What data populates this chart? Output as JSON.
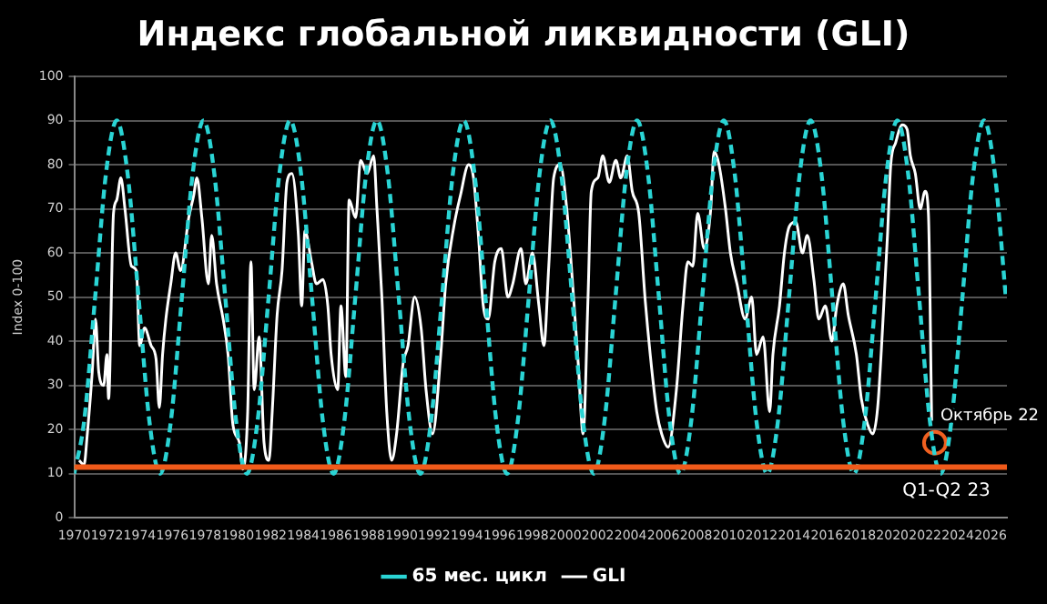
{
  "chart_data": {
    "type": "line",
    "title": "Индекс глобальной ликвидности (GLI)",
    "ylabel": "Index 0-100",
    "xlim": [
      1970,
      2027
    ],
    "xticks": [
      1970,
      1972,
      1974,
      1976,
      1978,
      1980,
      1982,
      1984,
      1986,
      1988,
      1990,
      1992,
      1994,
      1996,
      1998,
      2000,
      2002,
      2004,
      2006,
      2008,
      2010,
      2012,
      2014,
      2016,
      2018,
      2020,
      2022,
      2024,
      2026
    ],
    "ylim": [
      0,
      100
    ],
    "yticks": [
      0,
      10,
      20,
      30,
      40,
      50,
      60,
      70,
      80,
      90,
      100
    ],
    "grid": "y",
    "legend": "bottom",
    "series": [
      {
        "name": "65 мес. цикл",
        "color": "#2ad4d4",
        "line_style": "dashed",
        "marker": "none",
        "x": [
          1970,
          1970.61,
          1971.28,
          1971.94,
          1972.6,
          1973.26,
          1973.93,
          1974.59,
          1975.25,
          1975.91,
          1976.58,
          1977.24,
          1977.9,
          1978.56,
          1979.23,
          1979.89,
          1980.55,
          1981.21,
          1981.88,
          1982.54,
          1983.2,
          1983.86,
          1984.53,
          1985.19,
          1985.85,
          1986.51,
          1987.18,
          1987.84,
          1988.5,
          1989.16,
          1989.83,
          1990.49,
          1991.15,
          1991.81,
          1992.48,
          1993.14,
          1993.8,
          1994.46,
          1995.13,
          1995.79,
          1996.45,
          1997.11,
          1997.78,
          1998.44,
          1999.1,
          1999.76,
          2000.43,
          2001.09,
          2001.75,
          2002.41,
          2003.08,
          2003.74,
          2004.4,
          2005.06,
          2005.73,
          2006.39,
          2007.05,
          2007.71,
          2008.38,
          2009.04,
          2009.7,
          2010.36,
          2011.03,
          2011.69,
          2012.35,
          2013.01,
          2013.68,
          2014.34,
          2015,
          2015.66,
          2016.33,
          2016.99,
          2017.65,
          2018.31,
          2018.98,
          2019.64,
          2020.3,
          2020.96,
          2021.63,
          2022.29,
          2022.95,
          2023.61,
          2024.28,
          2024.94,
          2025.6,
          2026.26,
          2026.93
        ],
        "values": [
          10,
          22,
          50,
          78,
          90,
          78,
          50,
          22,
          10,
          22,
          50,
          78,
          90,
          78,
          50,
          22,
          10,
          22,
          50,
          78,
          90,
          78,
          50,
          22,
          10,
          22,
          50,
          78,
          90,
          78,
          50,
          22,
          10,
          22,
          50,
          78,
          90,
          78,
          50,
          22,
          10,
          22,
          50,
          78,
          90,
          78,
          50,
          22,
          10,
          22,
          50,
          78,
          90,
          78,
          50,
          22,
          10,
          22,
          50,
          78,
          90,
          78,
          50,
          22,
          10,
          22,
          50,
          78,
          90,
          78,
          50,
          22,
          10,
          22,
          50,
          78,
          90,
          78,
          50,
          22,
          10,
          22,
          50,
          78,
          90,
          78,
          50
        ]
      },
      {
        "name": "GLI",
        "color": "#ffffff",
        "line_style": "solid",
        "marker": "none",
        "x": [
          1970.3,
          1970.6,
          1970.8,
          1971.1,
          1971.3,
          1971.5,
          1971.8,
          1972,
          1972.1,
          1972.4,
          1972.6,
          1972.85,
          1973.1,
          1973.5,
          1973.8,
          1974,
          1974.3,
          1974.7,
          1975,
          1975.2,
          1975.4,
          1975.6,
          1975.9,
          1976.2,
          1976.5,
          1977,
          1977.3,
          1977.5,
          1977.8,
          1978.2,
          1978.4,
          1978.7,
          1979.1,
          1979.4,
          1979.7,
          1980.1,
          1980.3,
          1980.6,
          1980.8,
          1981,
          1981.3,
          1981.6,
          1981.9,
          1982.1,
          1982.4,
          1982.7,
          1983,
          1983.3,
          1983.7,
          1983.9,
          1984.1,
          1984.5,
          1984.8,
          1985.2,
          1985.5,
          1985.7,
          1986.1,
          1986.3,
          1986.6,
          1986.8,
          1987.2,
          1987.5,
          1987.9,
          1988.3,
          1988.5,
          1988.8,
          1989.1,
          1989.4,
          1989.7,
          1990.1,
          1990.4,
          1990.8,
          1991.2,
          1991.5,
          1991.9,
          1992.4,
          1992.7,
          1993.2,
          1993.6,
          1994.1,
          1994.4,
          1994.7,
          1995,
          1995.3,
          1995.7,
          1996.1,
          1996.5,
          1996.8,
          1997.3,
          1997.6,
          1998,
          1998.4,
          1998.7,
          1999,
          1999.3,
          1999.7,
          2000.1,
          2000.4,
          2000.8,
          2001.1,
          2001.4,
          2001.6,
          2002,
          2002.3,
          2002.7,
          2003.1,
          2003.4,
          2003.8,
          2004.1,
          2004.5,
          2004.9,
          2005.2,
          2005.6,
          2005.9,
          2006.3,
          2006.8,
          2007.2,
          2007.5,
          2007.8,
          2008.1,
          2008.5,
          2008.9,
          2009.1,
          2009.4,
          2009.8,
          2010.1,
          2010.5,
          2011,
          2011.4,
          2011.7,
          2012.1,
          2012.5,
          2012.7,
          2013.1,
          2013.4,
          2013.7,
          2014.1,
          2014.5,
          2014.8,
          2015.2,
          2015.5,
          2015.9,
          2016.3,
          2016.6,
          2017,
          2017.3,
          2017.8,
          2018.1,
          2018.5,
          2018.8,
          2019.1,
          2019.4,
          2019.7,
          2019.9,
          2020.2,
          2020.6,
          2020.9,
          2021.1,
          2021.4,
          2021.7,
          2022,
          2022.2,
          2022.4
        ],
        "values": [
          13,
          12,
          19,
          33,
          45,
          33,
          30,
          37,
          27,
          69,
          72,
          77,
          70,
          57,
          56,
          39,
          43,
          39,
          36,
          25,
          37,
          45,
          53,
          60,
          56,
          68,
          73,
          77,
          68,
          53,
          64,
          53,
          45,
          37,
          21,
          17,
          11,
          24,
          58,
          29,
          41,
          17,
          13,
          24,
          46,
          56,
          76,
          78,
          64,
          48,
          65,
          58,
          53,
          54,
          48,
          37,
          29,
          48,
          32,
          72,
          68,
          81,
          78,
          82,
          70,
          50,
          24,
          13,
          19,
          35,
          39,
          50,
          43,
          29,
          19,
          37,
          53,
          66,
          73,
          80,
          77,
          64,
          48,
          45,
          58,
          61,
          50,
          53,
          61,
          53,
          60,
          48,
          39,
          57,
          77,
          80,
          70,
          56,
          35,
          19,
          50,
          74,
          77,
          82,
          76,
          81,
          77,
          82,
          74,
          69,
          49,
          37,
          24,
          19,
          16,
          29,
          48,
          58,
          57,
          69,
          61,
          70,
          83,
          80,
          70,
          60,
          53,
          45,
          50,
          37,
          41,
          24,
          37,
          48,
          60,
          66,
          67,
          60,
          64,
          54,
          45,
          48,
          40,
          48,
          53,
          46,
          37,
          27,
          21,
          19,
          25,
          43,
          64,
          80,
          85,
          89,
          88,
          82,
          78,
          70,
          74,
          69,
          22
        ]
      },
      {
        "type": "scatter",
        "color": "#f06020",
        "marker": "circle",
        "x": [
          2022.6
        ],
        "values": [
          17
        ]
      }
    ],
    "ref_lines": [
      {
        "axis": "y",
        "value": 11.5,
        "color": "#f05a1a",
        "line_style": "solid"
      }
    ],
    "annotations": [
      {
        "text": "Октябрь 22",
        "x": 2022.6,
        "y": 17
      },
      {
        "text": "Q1-Q2 23",
        "x": 2023.3,
        "y": 11.5
      }
    ]
  }
}
